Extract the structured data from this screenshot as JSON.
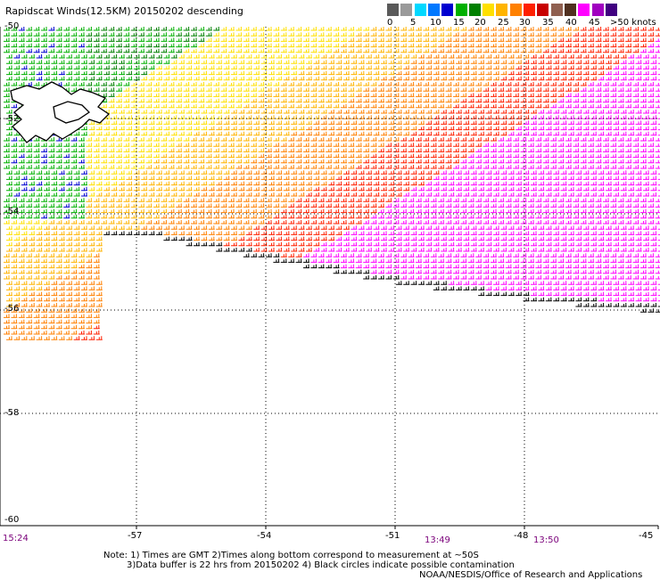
{
  "title": "Rapidscat Winds(12.5KM) 20150202 descending",
  "legend": {
    "colors": [
      "#5a5a5a",
      "#9a9a9a",
      "#00d8ff",
      "#0078ff",
      "#0000d0",
      "#00b000",
      "#008000",
      "#ffe000",
      "#ffb400",
      "#ff8000",
      "#ff2000",
      "#c80000",
      "#906050",
      "#503020",
      "#ff00ff",
      "#a000c0",
      "#400080"
    ],
    "labels": [
      "0",
      "5",
      "10",
      "15",
      "20",
      "25",
      "30",
      "35",
      "40",
      "45",
      ">50 knots"
    ]
  },
  "map": {
    "lat_labels": [
      "-50",
      "-52",
      "-54",
      "-56",
      "-58",
      "-60"
    ],
    "lon_labels": [
      "-57",
      "-54",
      "-51",
      "-48",
      "-45"
    ],
    "times": [
      "15:24",
      "13:49",
      "13:50"
    ]
  },
  "notes": [
    "Note: 1) Times are GMT 2)Times along bottom correspond to measurement at ~50S",
    "3)Data buffer is 22 hrs from 20150202 4) Black circles indicate possible contamination",
    "NOAA/NESDIS/Office of Research and Applications"
  ]
}
